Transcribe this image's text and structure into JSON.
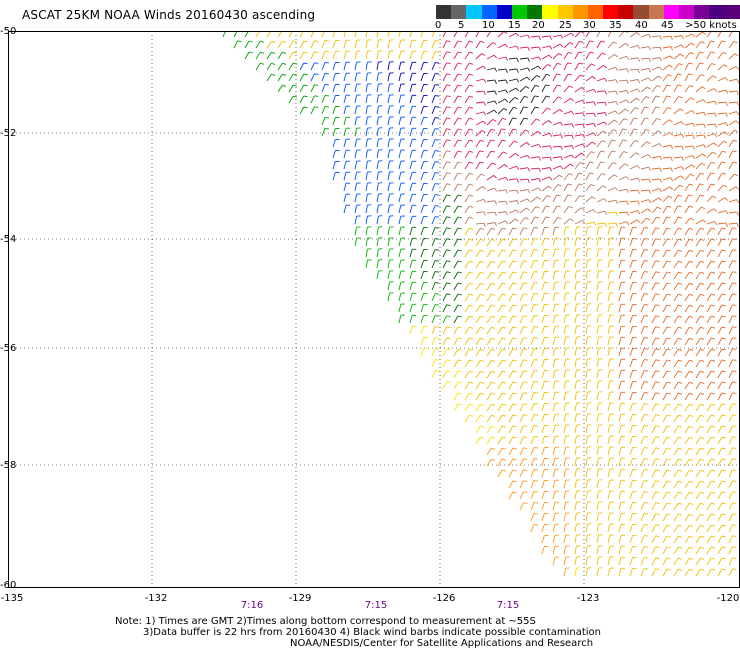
{
  "title": "ASCAT 25KM NOAA Winds 20160430 ascending",
  "colorbar": {
    "colors": [
      "#333333",
      "#666666",
      "#00c8ff",
      "#0064ff",
      "#0000c8",
      "#00c800",
      "#007800",
      "#ffff00",
      "#ffc800",
      "#ff9600",
      "#ff6400",
      "#ff0000",
      "#c80000",
      "#964b32",
      "#c87850",
      "#ff00ff",
      "#c800c8",
      "#780096",
      "#4b0082",
      "#5a0078"
    ],
    "labels": [
      "0",
      "5",
      "10",
      "15",
      "20",
      "25",
      "30",
      "35",
      "40",
      "45",
      ">50 knots"
    ]
  },
  "y_axis": {
    "ticks": [
      "-50",
      "-52",
      "-54",
      "-56",
      "-58",
      "-60"
    ]
  },
  "x_axis": {
    "ticks": [
      "-135",
      "-132",
      "-129",
      "-126",
      "-123",
      "-120"
    ]
  },
  "pass_times": [
    "7:16",
    "7:15",
    "7:15"
  ],
  "notes": {
    "line1": "Note: 1) Times are GMT 2)Times along bottom correspond to measurement at ~55S",
    "line2": "3)Data buffer is 22 hrs from 20160430 4) Black wind barbs indicate possible contamination",
    "line3": "NOAA/NESDIS/Center for Satellite Applications and Research"
  }
}
